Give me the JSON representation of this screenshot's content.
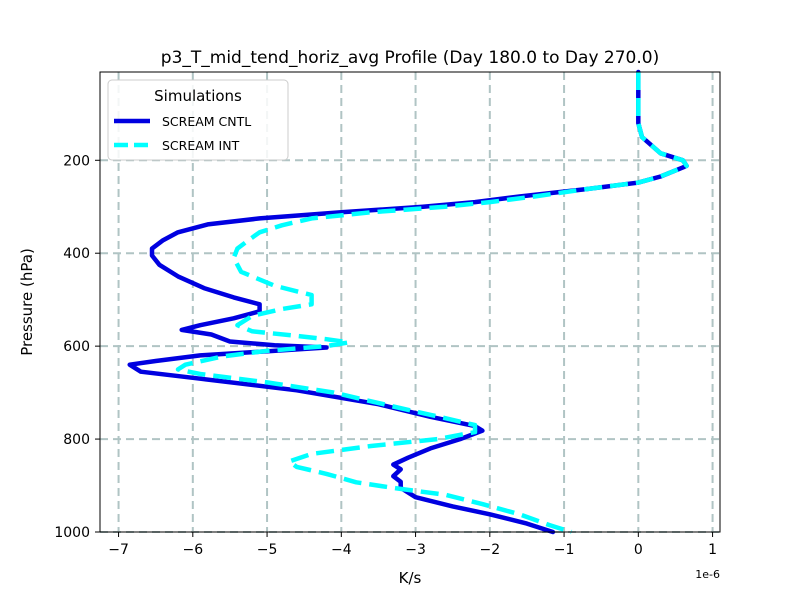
{
  "chart_data": {
    "type": "line",
    "title": "p3_T_mid_tend_horiz_avg Profile (Day 180.0 to Day 270.0)",
    "xlabel": "K/s",
    "ylabel": "Pressure (hPa)",
    "x_offset_label": "1e-6",
    "xlim": [
      -7.25,
      1.1
    ],
    "ylim": [
      1000,
      10
    ],
    "y_inverted": true,
    "xticks": [
      -7,
      -6,
      -5,
      -4,
      -3,
      -2,
      -1,
      0,
      1
    ],
    "xtick_labels": [
      "−7",
      "−6",
      "−5",
      "−4",
      "−3",
      "−2",
      "−1",
      "0",
      "1"
    ],
    "yticks": [
      200,
      400,
      600,
      800,
      1000
    ],
    "ytick_labels": [
      "200",
      "400",
      "600",
      "800",
      "1000"
    ],
    "grid": true,
    "legend": {
      "title": "Simulations",
      "placement": "top-left"
    },
    "series": [
      {
        "name": "SCREAM CNTL",
        "color": "#0000e0",
        "style": "solid",
        "points": [
          [
            0,
            10
          ],
          [
            0,
            120
          ],
          [
            0.05,
            150
          ],
          [
            0.3,
            185
          ],
          [
            0.6,
            200
          ],
          [
            0.65,
            212
          ],
          [
            0.3,
            235
          ],
          [
            0,
            248
          ],
          [
            -0.7,
            262
          ],
          [
            -1.6,
            278
          ],
          [
            -2.2,
            290
          ],
          [
            -2.9,
            300
          ],
          [
            -4.0,
            312
          ],
          [
            -5.1,
            325
          ],
          [
            -5.8,
            338
          ],
          [
            -6.2,
            355
          ],
          [
            -6.4,
            372
          ],
          [
            -6.55,
            390
          ],
          [
            -6.55,
            405
          ],
          [
            -6.45,
            425
          ],
          [
            -6.2,
            450
          ],
          [
            -5.85,
            475
          ],
          [
            -5.45,
            495
          ],
          [
            -5.1,
            510
          ],
          [
            -5.1,
            525
          ],
          [
            -5.45,
            540
          ],
          [
            -5.9,
            555
          ],
          [
            -6.15,
            565
          ],
          [
            -5.75,
            575
          ],
          [
            -5.5,
            590
          ],
          [
            -4.9,
            598
          ],
          [
            -4.2,
            603
          ],
          [
            -4.7,
            608
          ],
          [
            -5.9,
            620
          ],
          [
            -6.5,
            632
          ],
          [
            -6.85,
            640
          ],
          [
            -6.7,
            655
          ],
          [
            -5.9,
            670
          ],
          [
            -4.6,
            695
          ],
          [
            -3.5,
            725
          ],
          [
            -2.8,
            752
          ],
          [
            -2.2,
            772
          ],
          [
            -2.1,
            782
          ],
          [
            -2.4,
            800
          ],
          [
            -2.8,
            820
          ],
          [
            -3.1,
            840
          ],
          [
            -3.3,
            855
          ],
          [
            -3.2,
            865
          ],
          [
            -3.3,
            880
          ],
          [
            -3.2,
            892
          ],
          [
            -3.2,
            905
          ],
          [
            -3.0,
            925
          ],
          [
            -2.5,
            945
          ],
          [
            -2.0,
            962
          ],
          [
            -1.5,
            982
          ],
          [
            -1.15,
            1000
          ]
        ]
      },
      {
        "name": "SCREAM INT",
        "color": "#00ffff",
        "style": "dashed",
        "points": [
          [
            0,
            10
          ],
          [
            0,
            120
          ],
          [
            0.05,
            150
          ],
          [
            0.3,
            185
          ],
          [
            0.6,
            200
          ],
          [
            0.65,
            212
          ],
          [
            0.3,
            235
          ],
          [
            0,
            248
          ],
          [
            -0.7,
            262
          ],
          [
            -1.4,
            278
          ],
          [
            -2.0,
            290
          ],
          [
            -2.6,
            300
          ],
          [
            -3.6,
            312
          ],
          [
            -4.4,
            325
          ],
          [
            -4.8,
            340
          ],
          [
            -5.1,
            355
          ],
          [
            -5.25,
            372
          ],
          [
            -5.4,
            390
          ],
          [
            -5.45,
            410
          ],
          [
            -5.35,
            440
          ],
          [
            -4.9,
            470
          ],
          [
            -4.4,
            490
          ],
          [
            -4.4,
            510
          ],
          [
            -4.8,
            520
          ],
          [
            -5.2,
            535
          ],
          [
            -5.4,
            555
          ],
          [
            -5.2,
            568
          ],
          [
            -4.6,
            578
          ],
          [
            -4.2,
            585
          ],
          [
            -3.9,
            592
          ],
          [
            -4.2,
            600
          ],
          [
            -5.0,
            610
          ],
          [
            -5.6,
            622
          ],
          [
            -6.1,
            640
          ],
          [
            -6.2,
            650
          ],
          [
            -5.9,
            660
          ],
          [
            -5.0,
            678
          ],
          [
            -4.1,
            700
          ],
          [
            -3.3,
            730
          ],
          [
            -2.6,
            755
          ],
          [
            -2.2,
            770
          ],
          [
            -2.2,
            785
          ],
          [
            -2.7,
            800
          ],
          [
            -3.6,
            815
          ],
          [
            -4.4,
            832
          ],
          [
            -4.7,
            848
          ],
          [
            -4.6,
            860
          ],
          [
            -4.2,
            875
          ],
          [
            -3.8,
            893
          ],
          [
            -3.3,
            905
          ],
          [
            -2.6,
            920
          ],
          [
            -2.1,
            940
          ],
          [
            -1.6,
            962
          ],
          [
            -1.2,
            985
          ],
          [
            -0.9,
            1000
          ]
        ]
      }
    ]
  }
}
